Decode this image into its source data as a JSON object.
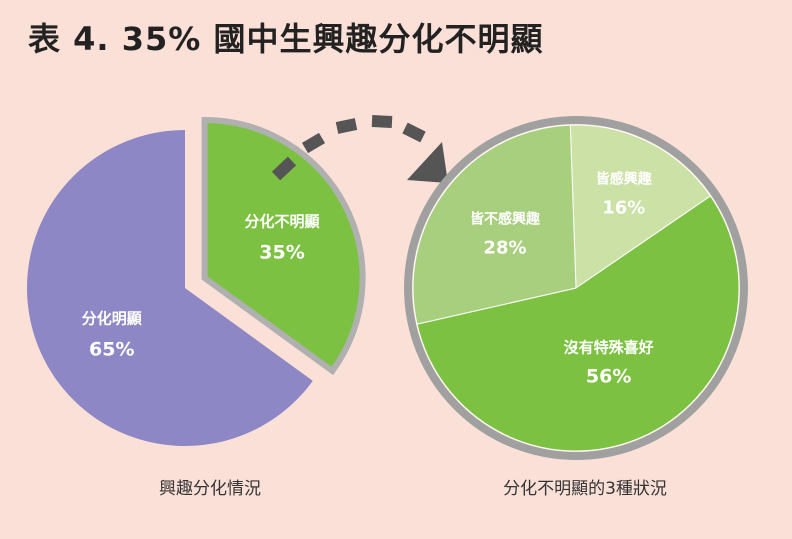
{
  "title": "表 4. 35% 國中生興趣分化不明顯",
  "colors": {
    "background": "#fbe0d8",
    "purple": "#8e87c6",
    "green": "#7dc143",
    "green_light": "#a8cf7d",
    "green_pale": "#cbe1a5",
    "ring": "#a0a0a0",
    "arrow": "#555555"
  },
  "chart_data": [
    {
      "type": "pie",
      "caption": "興趣分化情況",
      "slices": [
        {
          "label": "分化明顯",
          "value": 65,
          "display": "65%"
        },
        {
          "label": "分化不明顯",
          "value": 35,
          "display": "35%",
          "exploded": true
        }
      ]
    },
    {
      "type": "pie",
      "caption": "分化不明顯的3種狀況",
      "slices": [
        {
          "label": "皆感興趣",
          "value": 16,
          "display": "16%"
        },
        {
          "label": "沒有特殊喜好",
          "value": 56,
          "display": "56%"
        },
        {
          "label": "皆不感興趣",
          "value": 28,
          "display": "28%"
        }
      ]
    }
  ]
}
